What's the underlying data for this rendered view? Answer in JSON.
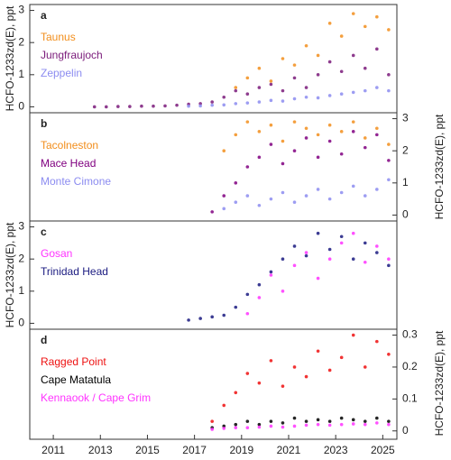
{
  "chart_data": [
    {
      "type": "scatter",
      "label": "a",
      "ylabel": "HCFO-1233zd(E),  ppt",
      "yaxis": "left",
      "xlim": [
        2010,
        2025.6
      ],
      "ylim": [
        -0.1,
        3.1
      ],
      "yticks": [
        0,
        1,
        2,
        3
      ],
      "x": [
        2012.75,
        2013.25,
        2013.75,
        2014.25,
        2014.75,
        2015.25,
        2015.75,
        2016.25,
        2016.75,
        2017.25,
        2017.75,
        2018.25,
        2018.75,
        2019.25,
        2019.75,
        2020.25,
        2020.75,
        2021.25,
        2021.75,
        2022.25,
        2022.75,
        2023.25,
        2023.75,
        2024.25,
        2024.75,
        2025.25
      ],
      "series": [
        {
          "name": "Taunus",
          "color": "#f28e1c",
          "values": [
            null,
            null,
            null,
            null,
            null,
            null,
            null,
            null,
            null,
            null,
            null,
            null,
            0.6,
            0.9,
            1.2,
            0.8,
            1.5,
            1.3,
            1.9,
            1.6,
            2.6,
            2.2,
            2.9,
            2.5,
            2.8,
            2.4
          ]
        },
        {
          "name": "Jungfraujoch",
          "color": "#7a1a7a",
          "values": [
            0,
            0,
            0.01,
            0.01,
            0.02,
            0.02,
            0.03,
            0.05,
            0.08,
            0.1,
            0.15,
            0.3,
            0.5,
            0.4,
            0.6,
            0.7,
            0.5,
            0.9,
            0.6,
            1.0,
            1.4,
            1.1,
            1.6,
            1.2,
            1.8,
            1.0
          ]
        },
        {
          "name": "Zeppelin",
          "color": "#8c8cf0",
          "values": [
            null,
            null,
            null,
            null,
            null,
            null,
            null,
            null,
            0.02,
            0.03,
            0.05,
            0.06,
            0.1,
            0.12,
            0.15,
            0.2,
            0.18,
            0.25,
            0.3,
            0.28,
            0.35,
            0.4,
            0.45,
            0.5,
            0.6,
            0.5
          ]
        }
      ]
    },
    {
      "type": "scatter",
      "label": "b",
      "ylabel": "HCFO-1233zd(E),  ppt",
      "yaxis": "right",
      "xlim": [
        2010,
        2025.6
      ],
      "ylim": [
        -0.1,
        3.1
      ],
      "yticks": [
        0,
        1,
        2,
        3
      ],
      "x": [
        2017.75,
        2018.25,
        2018.75,
        2019.25,
        2019.75,
        2020.25,
        2020.75,
        2021.25,
        2021.75,
        2022.25,
        2022.75,
        2023.25,
        2023.75,
        2024.25,
        2024.75,
        2025.25
      ],
      "series": [
        {
          "name": "Tacolneston",
          "color": "#f28e1c",
          "values": [
            null,
            2.0,
            2.5,
            2.9,
            2.6,
            2.8,
            2.3,
            2.9,
            2.7,
            2.5,
            2.8,
            2.6,
            2.9,
            2.4,
            2.7,
            2.2
          ]
        },
        {
          "name": "Mace Head",
          "color": "#800080",
          "values": [
            0.1,
            0.6,
            1.0,
            1.5,
            1.8,
            2.2,
            1.6,
            2.0,
            2.4,
            1.8,
            2.3,
            1.9,
            2.6,
            2.1,
            2.5,
            1.7
          ]
        },
        {
          "name": "Monte Cimone",
          "color": "#8c8cf0",
          "values": [
            null,
            0.2,
            0.4,
            0.6,
            0.3,
            0.5,
            0.7,
            0.4,
            0.6,
            0.8,
            0.5,
            0.7,
            0.9,
            0.6,
            0.8,
            1.1
          ]
        }
      ]
    },
    {
      "type": "scatter",
      "label": "c",
      "ylabel": "HCFO-1233zd(E),  ppt",
      "yaxis": "left",
      "xlim": [
        2010,
        2025.6
      ],
      "ylim": [
        -0.1,
        3.1
      ],
      "yticks": [
        0,
        1,
        2,
        3
      ],
      "x": [
        2016.75,
        2017.25,
        2017.75,
        2018.25,
        2018.75,
        2019.25,
        2019.75,
        2020.25,
        2020.75,
        2021.25,
        2021.75,
        2022.25,
        2022.75,
        2023.25,
        2023.75,
        2024.25,
        2024.75,
        2025.25
      ],
      "series": [
        {
          "name": "Gosan",
          "color": "#ff33ff",
          "values": [
            null,
            null,
            null,
            null,
            null,
            0.3,
            0.8,
            1.5,
            1.0,
            1.8,
            2.2,
            1.4,
            2.0,
            2.5,
            2.8,
            1.9,
            2.4,
            2.0
          ]
        },
        {
          "name": "Trinidad Head",
          "color": "#1a1a80",
          "values": [
            0.1,
            0.15,
            0.2,
            0.25,
            0.5,
            0.9,
            1.2,
            1.6,
            2.0,
            2.4,
            2.1,
            2.8,
            2.3,
            2.7,
            2.0,
            2.5,
            2.2,
            1.8
          ]
        }
      ]
    },
    {
      "type": "scatter",
      "label": "d",
      "ylabel": "HCFO-1233zd(E),  ppt",
      "yaxis": "right",
      "xlim": [
        2010,
        2025.6
      ],
      "ylim": [
        -0.012,
        0.31
      ],
      "yticks": [
        0,
        0.1,
        0.2,
        0.3
      ],
      "xticks": [
        2011,
        2013,
        2015,
        2017,
        2019,
        2021,
        2023,
        2025
      ],
      "x": [
        2017.75,
        2018.25,
        2018.75,
        2019.25,
        2019.75,
        2020.25,
        2020.75,
        2021.25,
        2021.75,
        2022.25,
        2022.75,
        2023.25,
        2023.75,
        2024.25,
        2024.75,
        2025.25
      ],
      "series": [
        {
          "name": "Ragged Point",
          "color": "#ee1111",
          "values": [
            0.03,
            0.08,
            0.12,
            0.18,
            0.15,
            0.22,
            0.14,
            0.2,
            0.17,
            0.25,
            0.19,
            0.23,
            0.3,
            0.2,
            0.28,
            0.24
          ]
        },
        {
          "name": "Cape Matatula",
          "color": "#000000",
          "values": [
            0.01,
            0.015,
            0.02,
            0.03,
            0.02,
            0.03,
            0.025,
            0.04,
            0.03,
            0.035,
            0.03,
            0.04,
            0.035,
            0.03,
            0.04,
            0.03
          ]
        },
        {
          "name": "Kennaook / Cape Grim",
          "color": "#ff33ff",
          "values": [
            0.005,
            0.008,
            0.01,
            0.01,
            0.012,
            0.015,
            0.012,
            0.015,
            0.018,
            0.02,
            0.018,
            0.02,
            0.022,
            0.02,
            0.025,
            0.02
          ]
        }
      ]
    }
  ]
}
